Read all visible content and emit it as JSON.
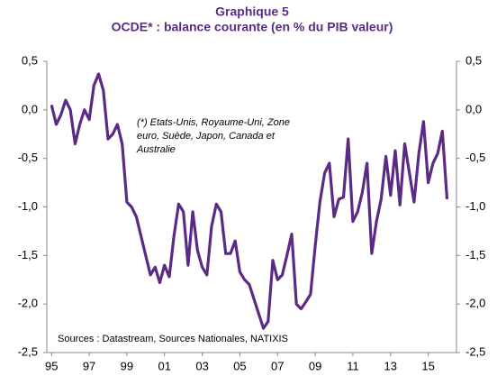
{
  "chart_data": {
    "type": "line",
    "title": "Graphique 5",
    "subtitle": "OCDE* : balance courante (en % du PIB valeur)",
    "annotation": [
      "(*) Etats-Unis, Royaume-Uni, Zone",
      "euro, Suède, Japon, Canada et",
      "Australie"
    ],
    "source": "Sources : Datastream, Sources Nationales, NATIXIS",
    "color": "#5b2a86",
    "x": [
      1995,
      1995.25,
      1995.5,
      1995.75,
      1996,
      1996.25,
      1996.5,
      1996.75,
      1997,
      1997.25,
      1997.5,
      1997.75,
      1998,
      1998.25,
      1998.5,
      1998.75,
      1999,
      1999.25,
      1999.5,
      1999.75,
      2000,
      2000.25,
      2000.5,
      2000.75,
      2001,
      2001.25,
      2001.5,
      2001.75,
      2002,
      2002.25,
      2002.5,
      2002.75,
      2003,
      2003.25,
      2003.5,
      2003.75,
      2004,
      2004.25,
      2004.5,
      2004.75,
      2005,
      2005.25,
      2005.5,
      2005.75,
      2006,
      2006.25,
      2006.5,
      2006.75,
      2007,
      2007.25,
      2007.5,
      2007.75,
      2008,
      2008.25,
      2008.5,
      2008.75,
      2009,
      2009.25,
      2009.5,
      2009.75,
      2010,
      2010.25,
      2010.5,
      2010.75,
      2011,
      2011.25,
      2011.5,
      2011.75,
      2012,
      2012.25,
      2012.5,
      2012.75,
      2013,
      2013.25,
      2013.5,
      2013.75,
      2014,
      2014.25,
      2014.5,
      2014.75,
      2015,
      2015.25,
      2015.5,
      2015.75,
      2016
    ],
    "values": [
      0.05,
      -0.15,
      -0.05,
      0.1,
      0.0,
      -0.35,
      -0.15,
      0.0,
      -0.1,
      0.25,
      0.37,
      0.2,
      -0.3,
      -0.25,
      -0.15,
      -0.35,
      -0.95,
      -1.0,
      -1.1,
      -1.3,
      -1.5,
      -1.7,
      -1.62,
      -1.78,
      -1.6,
      -1.72,
      -1.3,
      -0.97,
      -1.05,
      -1.6,
      -1.05,
      -1.45,
      -1.62,
      -1.7,
      -1.2,
      -0.97,
      -1.05,
      -1.48,
      -1.48,
      -1.35,
      -1.67,
      -1.75,
      -1.8,
      -1.95,
      -2.1,
      -2.25,
      -2.18,
      -1.55,
      -1.75,
      -1.7,
      -1.5,
      -1.28,
      -2.0,
      -2.05,
      -1.98,
      -1.9,
      -1.4,
      -0.95,
      -0.65,
      -0.55,
      -1.1,
      -0.92,
      -0.9,
      -0.3,
      -1.15,
      -1.05,
      -0.85,
      -0.55,
      -1.48,
      -1.15,
      -0.92,
      -0.48,
      -0.88,
      -0.42,
      -0.98,
      -0.35,
      -0.65,
      -0.95,
      -0.45,
      -0.12,
      -0.75,
      -0.55,
      -0.45,
      -0.22,
      -0.92
    ],
    "xlim": [
      1994.75,
      2016.5
    ],
    "xticks": [
      {
        "value": 1995,
        "label": "95"
      },
      {
        "value": 1997,
        "label": "97"
      },
      {
        "value": 1999,
        "label": "99"
      },
      {
        "value": 2001,
        "label": "01"
      },
      {
        "value": 2003,
        "label": "03"
      },
      {
        "value": 2005,
        "label": "05"
      },
      {
        "value": 2007,
        "label": "07"
      },
      {
        "value": 2009,
        "label": "09"
      },
      {
        "value": 2011,
        "label": "11"
      },
      {
        "value": 2013,
        "label": "13"
      },
      {
        "value": 2015,
        "label": "15"
      }
    ],
    "ylim": [
      -2.5,
      0.5
    ],
    "yticks": [
      {
        "value": 0.5,
        "label": "0,5"
      },
      {
        "value": 0,
        "label": "0,0"
      },
      {
        "value": -0.5,
        "label": "-0,5"
      },
      {
        "value": -1,
        "label": "-1,0"
      },
      {
        "value": -1.5,
        "label": "-1,5"
      },
      {
        "value": -2,
        "label": "-2,0"
      },
      {
        "value": -2.5,
        "label": "-2,5"
      }
    ],
    "grid": false
  }
}
